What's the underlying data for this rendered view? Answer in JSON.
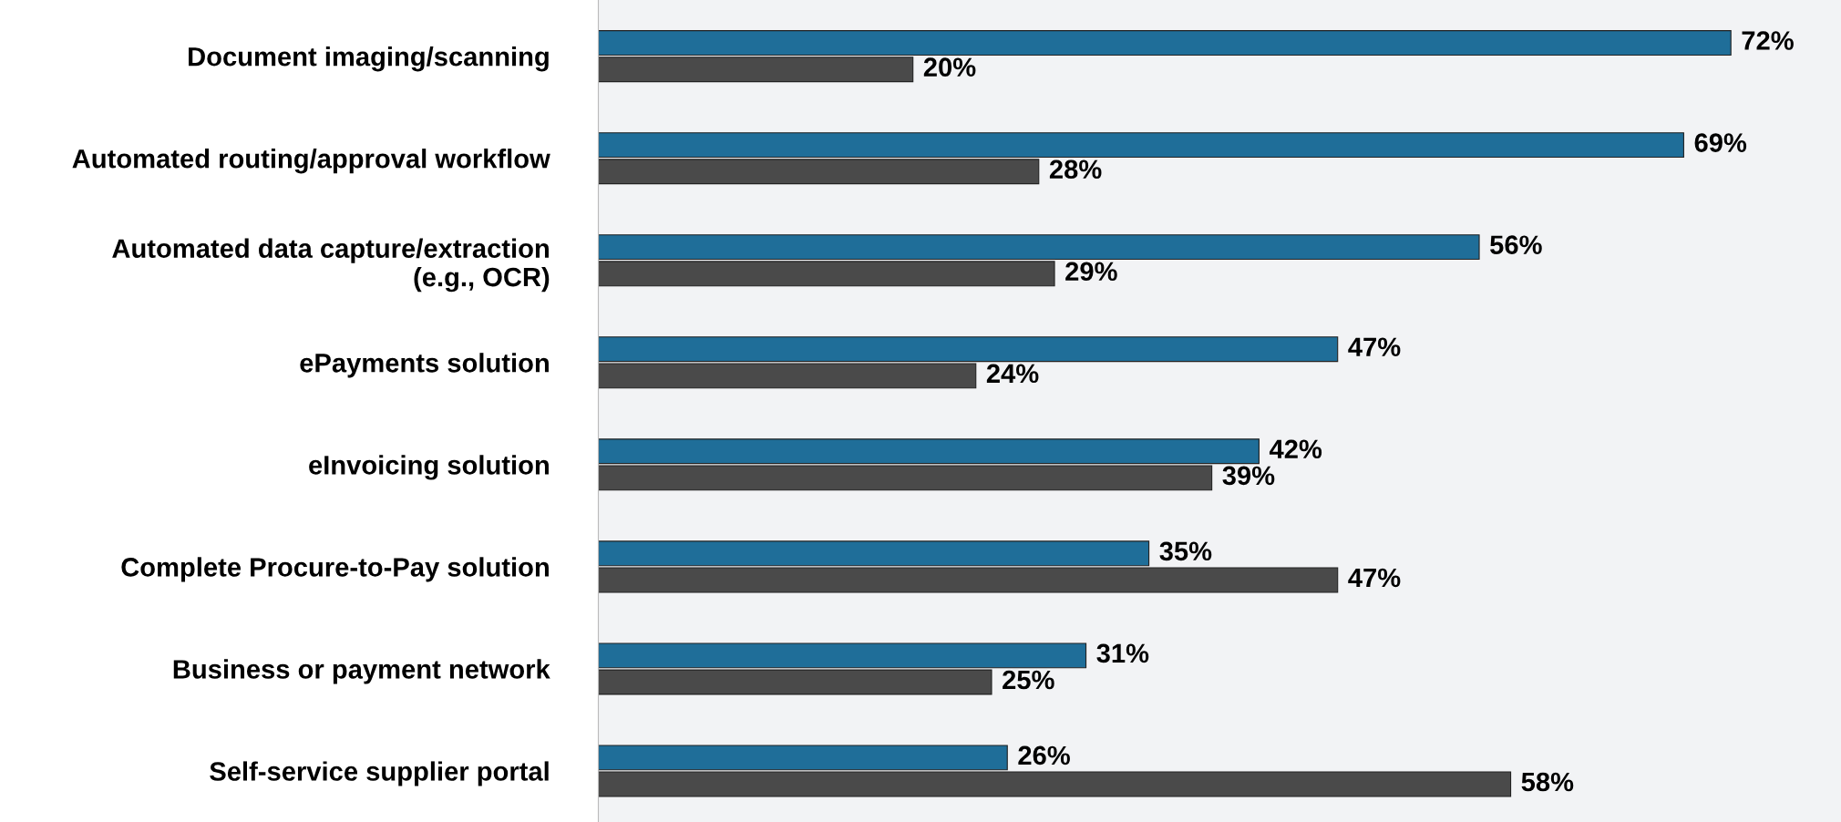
{
  "chart_data": {
    "type": "bar",
    "orientation": "horizontal",
    "categories": [
      "Document imaging/scanning",
      "Automated routing/approval workflow",
      "Automated data capture/extraction\n(e.g., OCR)",
      "ePayments solution",
      "eInvoicing solution",
      "Complete Procure-to-Pay solution",
      "Business or payment network",
      "Self-service supplier portal"
    ],
    "series": [
      {
        "color": "#1f6e99",
        "values": [
          72,
          69,
          56,
          47,
          42,
          35,
          31,
          26
        ],
        "value_labels": [
          "72%",
          "69%",
          "56%",
          "47%",
          "42%",
          "35%",
          "31%",
          "26%"
        ]
      },
      {
        "color": "#4a4a4a",
        "values": [
          20,
          28,
          29,
          24,
          39,
          47,
          25,
          58
        ],
        "value_labels": [
          "20%",
          "28%",
          "29%",
          "24%",
          "39%",
          "47%",
          "25%",
          "58%"
        ]
      }
    ],
    "xlim": [
      0,
      79
    ],
    "tick_labels": "y",
    "grid": false,
    "legend": false
  }
}
